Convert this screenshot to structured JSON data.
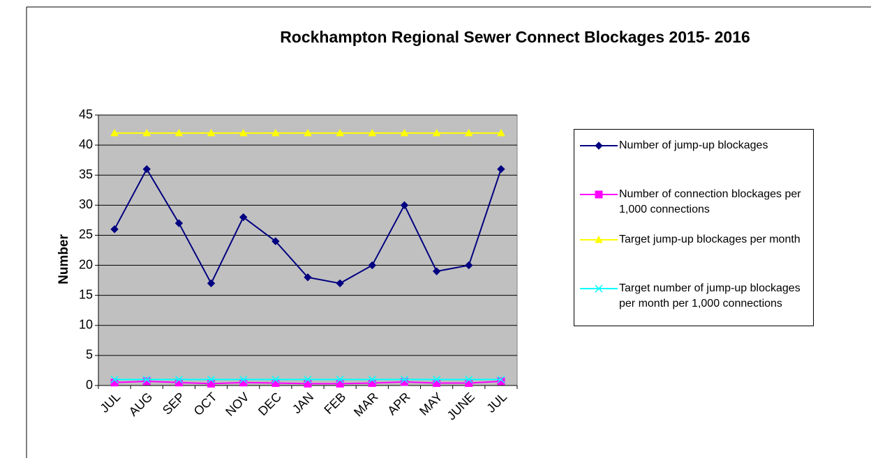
{
  "chart_data": {
    "type": "line",
    "title": "Rockhampton  Regional Sewer Connect Blockages 2015- 2016",
    "y_label": "Number",
    "categories": [
      "JUL",
      "AUG",
      "SEP",
      "OCT",
      "NOV",
      "DEC",
      "JAN",
      "FEB",
      "MAR",
      "APR",
      "MAY",
      "JUNE",
      "JUL"
    ],
    "series": [
      {
        "name": "Number of jump-up blockages",
        "color": "#000080",
        "marker": "diamond",
        "values": [
          26,
          36,
          27,
          17,
          28,
          24,
          18,
          17,
          20,
          30,
          19,
          20,
          36
        ]
      },
      {
        "name": "Number of connection blockages per 1,000 connections",
        "color": "#ff00ff",
        "marker": "square",
        "values": [
          0.5,
          0.7,
          0.5,
          0.3,
          0.5,
          0.4,
          0.3,
          0.3,
          0.4,
          0.6,
          0.4,
          0.4,
          0.7
        ]
      },
      {
        "name": "Target jump-up blockages per month",
        "color": "#ffff00",
        "marker": "triangle",
        "values": [
          42,
          42,
          42,
          42,
          42,
          42,
          42,
          42,
          42,
          42,
          42,
          42,
          42
        ]
      },
      {
        "name": "Target number of jump-up blockages per month per 1,000 connections",
        "color": "#00ffff",
        "marker": "x",
        "values": [
          1,
          1,
          1,
          1,
          1,
          1,
          1,
          1,
          1,
          1,
          1,
          1,
          1
        ]
      }
    ],
    "ylim": [
      0,
      45
    ],
    "yticks": [
      0,
      5,
      10,
      15,
      20,
      25,
      30,
      35,
      40,
      45
    ],
    "grid": true,
    "plot_background": "#c0c0c0",
    "legend": "right"
  }
}
